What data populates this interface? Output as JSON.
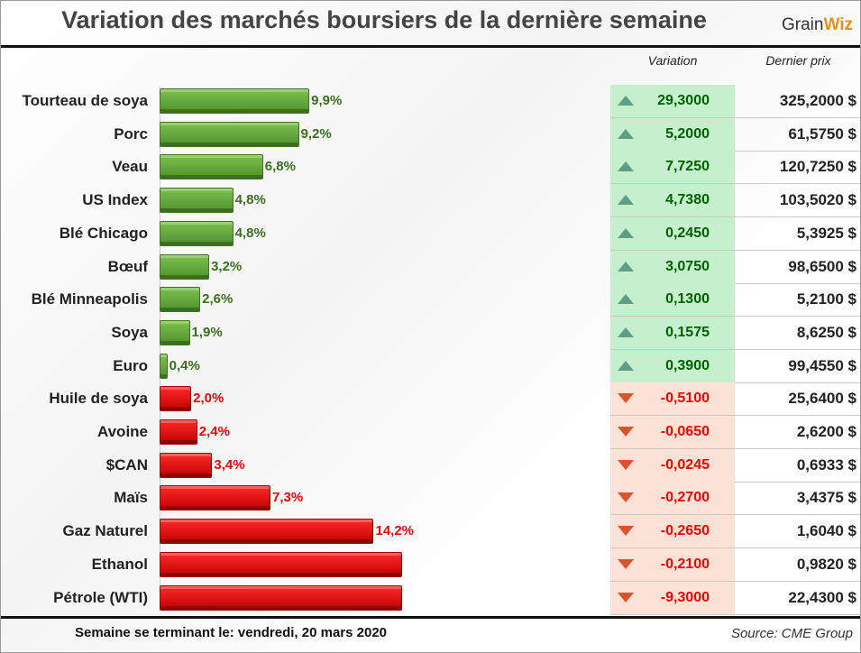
{
  "title": "Variation des marchés boursiers de la dernière semaine",
  "logo": {
    "text1": "Grain",
    "text2": "Wiz"
  },
  "headers": {
    "variation": "Variation",
    "price": "Dernier prix"
  },
  "footer": {
    "week": "Semaine se terminant le:  vendredi, 20 mars 2020",
    "source": "Source: CME Group"
  },
  "colors": {
    "up": "#5a9e35",
    "down": "#ff0000",
    "up_text": "#3b6e1e",
    "down_text": "#ff0000"
  },
  "chart_data": {
    "type": "bar",
    "orientation": "horizontal",
    "title": "Variation des marchés boursiers de la dernière semaine",
    "categories": [
      "Tourteau de soya",
      "Porc",
      "Veau",
      "US Index",
      "Blé Chicago",
      "Bœuf",
      "Blé Minneapolis",
      "Soya",
      "Euro",
      "Huile de soya",
      "Avoine",
      "$CAN",
      "Maïs",
      "Gaz Naturel",
      "Ethanol",
      "Pétrole (WTI)"
    ],
    "values": [
      9.9,
      9.2,
      6.8,
      4.8,
      4.8,
      3.2,
      2.6,
      1.9,
      0.4,
      2.0,
      2.4,
      3.4,
      7.3,
      14.2,
      16.1,
      16.1
    ],
    "direction": [
      "up",
      "up",
      "up",
      "up",
      "up",
      "up",
      "up",
      "up",
      "up",
      "down",
      "down",
      "down",
      "down",
      "down",
      "down",
      "down"
    ],
    "labels": [
      "9,9%",
      "9,2%",
      "6,8%",
      "4,8%",
      "4,8%",
      "3,2%",
      "2,6%",
      "1,9%",
      "0,4%",
      "2,0%",
      "2,4%",
      "3,4%",
      "7,3%",
      "14,2%",
      "",
      ""
    ],
    "xlim": [
      0,
      16.1
    ]
  },
  "table": [
    {
      "variation": "29,3000",
      "price": "325,2000 $"
    },
    {
      "variation": "5,2000",
      "price": "61,5750 $"
    },
    {
      "variation": "7,7250",
      "price": "120,7250 $"
    },
    {
      "variation": "4,7380",
      "price": "103,5020 $"
    },
    {
      "variation": "0,2450",
      "price": "5,3925 $"
    },
    {
      "variation": "3,0750",
      "price": "98,6500 $"
    },
    {
      "variation": "0,1300",
      "price": "5,2100 $"
    },
    {
      "variation": "0,1575",
      "price": "8,6250 $"
    },
    {
      "variation": "0,3900",
      "price": "99,4550 $"
    },
    {
      "variation": "-0,5100",
      "price": "25,6400 $"
    },
    {
      "variation": "-0,0650",
      "price": "2,6200 $"
    },
    {
      "variation": "-0,0245",
      "price": "0,6933 $"
    },
    {
      "variation": "-0,2700",
      "price": "3,4375 $"
    },
    {
      "variation": "-0,2650",
      "price": "1,6040 $"
    },
    {
      "variation": "-0,2100",
      "price": "0,9820 $"
    },
    {
      "variation": "-9,3000",
      "price": "22,4300 $"
    }
  ]
}
